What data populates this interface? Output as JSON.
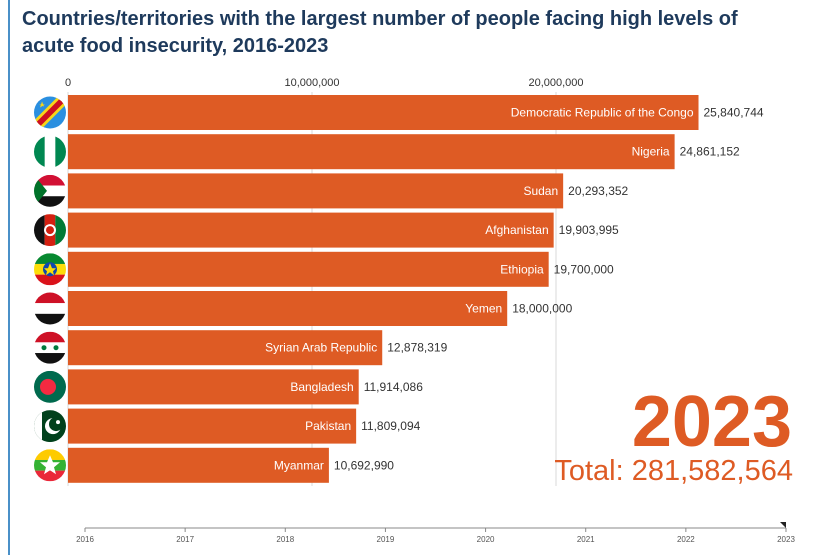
{
  "title": {
    "line1": "Countries/territories with the largest number of people facing high levels of",
    "line2": "acute food insecurity, 2016-2023"
  },
  "chart_data": {
    "type": "bar",
    "orientation": "horizontal",
    "title": "Countries/territories with the largest number of people facing high levels of acute food insecurity, 2016-2023",
    "categories": [
      "Democratic Republic of the Congo",
      "Nigeria",
      "Sudan",
      "Afghanistan",
      "Ethiopia",
      "Yemen",
      "Syrian Arab Republic",
      "Bangladesh",
      "Pakistan",
      "Myanmar"
    ],
    "values": [
      25840744,
      24861152,
      20293352,
      19903995,
      19700000,
      18000000,
      12878319,
      11914086,
      11809094,
      10692990
    ],
    "value_labels": [
      "25,840,744",
      "24,861,152",
      "20,293,352",
      "19,903,995",
      "19,700,000",
      "18,000,000",
      "12,878,319",
      "11,914,086",
      "11,809,094",
      "10,692,990"
    ],
    "xlim": [
      0,
      29000000
    ],
    "x_ticks": [
      0,
      10000000,
      20000000
    ],
    "x_tick_labels": [
      "0",
      "10,000,000",
      "20,000,000"
    ],
    "grid": true,
    "bar_color": "#de5b24",
    "year": "2023",
    "total_label": "Total: 281,582,564",
    "timeline_years": [
      "2016",
      "2017",
      "2018",
      "2019",
      "2020",
      "2021",
      "2022",
      "2023"
    ],
    "flags": [
      "drc-flag-icon",
      "nigeria-flag-icon",
      "sudan-flag-icon",
      "afghanistan-flag-icon",
      "ethiopia-flag-icon",
      "yemen-flag-icon",
      "syria-flag-icon",
      "bangladesh-flag-icon",
      "pakistan-flag-icon",
      "myanmar-flag-icon"
    ]
  }
}
